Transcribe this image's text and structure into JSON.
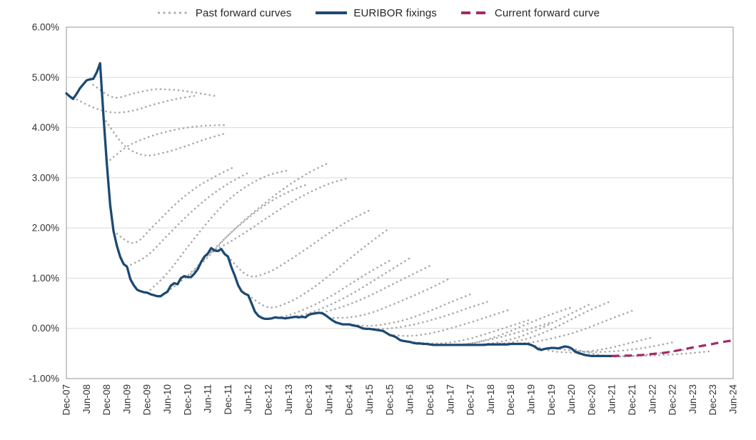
{
  "chart_data": {
    "type": "line",
    "title": "",
    "description": "EURIBOR fixings history with past forward curves (dotted) and current forward curve (dashed)",
    "grid": "horizontal",
    "legend": {
      "position": "top",
      "items": [
        {
          "label": "Past forward curves",
          "style": "dotted",
          "color": "#a8a8a8"
        },
        {
          "label": "EURIBOR fixings",
          "style": "solid",
          "color": "#1b4a73"
        },
        {
          "label": "Current forward curve",
          "style": "dashed",
          "color": "#a42a68"
        }
      ]
    },
    "y_axis": {
      "min": -1.0,
      "max": 6.0,
      "tick_values": [
        6,
        5,
        4,
        3,
        2,
        1,
        0,
        -1
      ],
      "tick_labels": [
        "6.00%",
        "5.00%",
        "4.00%",
        "3.00%",
        "2.00%",
        "1.00%",
        "0.00%",
        "-1.00%"
      ]
    },
    "x_axis": {
      "unit": "months_since_Dec-07",
      "min_month": 0,
      "max_month": 198,
      "tick_step_months": 6,
      "tick_labels": [
        "Dec-07",
        "Jun-08",
        "Dec-08",
        "Jun-09",
        "Dec-09",
        "Jun-10",
        "Dec-10",
        "Jun-11",
        "Dec-11",
        "Jun-12",
        "Dec-12",
        "Jun-13",
        "Dec-13",
        "Jun-14",
        "Dec-14",
        "Jun-15",
        "Dec-15",
        "Jun-16",
        "Dec-16",
        "Jun-17",
        "Dec-17",
        "Jun-18",
        "Dec-18",
        "Jun-19",
        "Dec-19",
        "Jun-20",
        "Dec-20",
        "Jun-21",
        "Dec-21",
        "Jun-22",
        "Dec-22",
        "Jun-23",
        "Dec-23",
        "Jun-24"
      ],
      "label_rotation_deg": -90
    },
    "series": {
      "euribor_fixings": {
        "name": "EURIBOR fixings",
        "color": "#1b4a73",
        "style": "solid",
        "start_month": 0,
        "step_months": 1,
        "values_pct": [
          4.68,
          4.62,
          4.57,
          4.67,
          4.78,
          4.86,
          4.94,
          4.96,
          4.97,
          5.1,
          5.28,
          4.24,
          3.29,
          2.46,
          1.94,
          1.64,
          1.42,
          1.28,
          1.23,
          0.98,
          0.86,
          0.77,
          0.74,
          0.72,
          0.71,
          0.68,
          0.66,
          0.64,
          0.64,
          0.69,
          0.73,
          0.85,
          0.9,
          0.88,
          1.0,
          1.04,
          1.02,
          1.02,
          1.09,
          1.18,
          1.32,
          1.43,
          1.49,
          1.6,
          1.55,
          1.54,
          1.58,
          1.48,
          1.43,
          1.22,
          1.05,
          0.86,
          0.74,
          0.69,
          0.66,
          0.5,
          0.33,
          0.25,
          0.21,
          0.19,
          0.19,
          0.2,
          0.22,
          0.21,
          0.21,
          0.2,
          0.21,
          0.22,
          0.23,
          0.22,
          0.23,
          0.22,
          0.27,
          0.29,
          0.3,
          0.31,
          0.3,
          0.26,
          0.21,
          0.16,
          0.12,
          0.1,
          0.08,
          0.08,
          0.08,
          0.06,
          0.05,
          0.03,
          0.0,
          -0.01,
          -0.01,
          -0.02,
          -0.03,
          -0.04,
          -0.05,
          -0.09,
          -0.13,
          -0.15,
          -0.18,
          -0.23,
          -0.25,
          -0.26,
          -0.27,
          -0.29,
          -0.3,
          -0.3,
          -0.31,
          -0.31,
          -0.32,
          -0.33,
          -0.33,
          -0.33,
          -0.33,
          -0.33,
          -0.33,
          -0.33,
          -0.33,
          -0.33,
          -0.33,
          -0.33,
          -0.33,
          -0.33,
          -0.33,
          -0.33,
          -0.33,
          -0.32,
          -0.32,
          -0.32,
          -0.32,
          -0.32,
          -0.32,
          -0.32,
          -0.31,
          -0.31,
          -0.31,
          -0.31,
          -0.31,
          -0.31,
          -0.33,
          -0.36,
          -0.41,
          -0.43,
          -0.41,
          -0.4,
          -0.39,
          -0.39,
          -0.4,
          -0.38,
          -0.36,
          -0.37,
          -0.4,
          -0.46,
          -0.49,
          -0.51,
          -0.53,
          -0.54,
          -0.55,
          -0.55,
          -0.55,
          -0.55,
          -0.55,
          -0.55,
          -0.55
        ]
      },
      "current_forward_curve": {
        "name": "Current forward curve",
        "color": "#a42a68",
        "style": "dashed",
        "start_month": 162,
        "step_months": 3,
        "values_pct": [
          -0.55,
          -0.545,
          -0.54,
          -0.53,
          -0.51,
          -0.49,
          -0.46,
          -0.42,
          -0.38,
          -0.345,
          -0.31,
          -0.27,
          -0.24
        ]
      },
      "past_forward_curves": {
        "name": "Past forward curves",
        "color": "#a8a8a8",
        "style": "dotted",
        "step_months": 6,
        "curves": [
          {
            "start_month": 2,
            "values_pct": [
              4.6,
              4.4,
              4.3,
              4.34,
              4.46,
              4.56,
              4.63
            ]
          },
          {
            "start_month": 8,
            "values_pct": [
              4.85,
              4.6,
              4.68,
              4.76,
              4.75,
              4.7,
              4.63
            ]
          },
          {
            "start_month": 11,
            "values_pct": [
              4.2,
              3.66,
              3.45,
              3.5,
              3.62,
              3.76,
              3.88
            ]
          },
          {
            "start_month": 12,
            "values_pct": [
              3.3,
              3.62,
              3.8,
              3.92,
              4.0,
              4.04,
              4.05
            ]
          },
          {
            "start_month": 14,
            "values_pct": [
              1.94,
              1.7,
              2.05,
              2.45,
              2.78,
              3.02,
              3.22
            ]
          },
          {
            "start_month": 18,
            "values_pct": [
              1.23,
              1.45,
              1.85,
              2.25,
              2.6,
              2.88,
              3.1
            ]
          },
          {
            "start_month": 24,
            "values_pct": [
              0.71,
              1.1,
              1.62,
              2.12,
              2.55,
              2.85,
              3.05,
              3.15
            ]
          },
          {
            "start_month": 30,
            "values_pct": [
              0.73,
              1.05,
              1.45,
              1.85,
              2.2,
              2.5,
              2.72,
              2.88
            ]
          },
          {
            "start_month": 36,
            "values_pct": [
              1.02,
              1.42,
              1.85,
              2.22,
              2.55,
              2.85,
              3.1,
              3.3
            ]
          },
          {
            "start_month": 42,
            "values_pct": [
              1.49,
              1.7,
              1.95,
              2.22,
              2.48,
              2.7,
              2.88,
              3.0
            ]
          },
          {
            "start_month": 48,
            "values_pct": [
              1.43,
              1.05,
              1.12,
              1.35,
              1.62,
              1.9,
              2.15,
              2.35
            ]
          },
          {
            "start_month": 54,
            "values_pct": [
              0.66,
              0.42,
              0.52,
              0.75,
              1.05,
              1.38,
              1.7,
              2.0
            ]
          },
          {
            "start_month": 60,
            "values_pct": [
              0.19,
              0.26,
              0.42,
              0.62,
              0.87,
              1.12,
              1.35
            ]
          },
          {
            "start_month": 66,
            "values_pct": [
              0.21,
              0.3,
              0.46,
              0.66,
              0.9,
              1.15,
              1.4
            ]
          },
          {
            "start_month": 72,
            "values_pct": [
              0.27,
              0.35,
              0.48,
              0.65,
              0.85,
              1.05,
              1.25
            ]
          },
          {
            "start_month": 78,
            "values_pct": [
              0.21,
              0.22,
              0.3,
              0.45,
              0.62,
              0.8,
              1.0
            ]
          },
          {
            "start_month": 84,
            "values_pct": [
              0.08,
              0.05,
              0.1,
              0.2,
              0.35,
              0.52,
              0.68
            ]
          },
          {
            "start_month": 90,
            "values_pct": [
              -0.01,
              0.0,
              0.06,
              0.16,
              0.28,
              0.42,
              0.55
            ]
          },
          {
            "start_month": 96,
            "values_pct": [
              -0.13,
              -0.15,
              -0.1,
              0.0,
              0.12,
              0.25,
              0.38
            ]
          },
          {
            "start_month": 102,
            "values_pct": [
              -0.27,
              -0.3,
              -0.28,
              -0.2,
              -0.08,
              0.05,
              0.18
            ]
          },
          {
            "start_month": 108,
            "values_pct": [
              -0.32,
              -0.33,
              -0.3,
              -0.22,
              -0.12,
              0.0,
              0.12
            ]
          },
          {
            "start_month": 114,
            "values_pct": [
              -0.33,
              -0.3,
              -0.2,
              -0.05,
              0.12,
              0.28,
              0.42
            ]
          },
          {
            "start_month": 120,
            "values_pct": [
              -0.33,
              -0.3,
              -0.22,
              -0.08,
              0.1,
              0.3,
              0.5
            ]
          },
          {
            "start_month": 126,
            "values_pct": [
              -0.32,
              -0.28,
              -0.18,
              -0.02,
              0.18,
              0.38,
              0.55
            ]
          },
          {
            "start_month": 132,
            "values_pct": [
              -0.31,
              -0.28,
              -0.2,
              -0.1,
              0.04,
              0.2,
              0.35
            ]
          },
          {
            "start_month": 138,
            "values_pct": [
              -0.33,
              -0.45,
              -0.48,
              -0.45,
              -0.38,
              -0.28,
              -0.18
            ]
          },
          {
            "start_month": 144,
            "values_pct": [
              -0.39,
              -0.44,
              -0.47,
              -0.46,
              -0.42,
              -0.36,
              -0.28
            ]
          },
          {
            "start_month": 150,
            "values_pct": [
              -0.4,
              -0.5,
              -0.56,
              -0.55,
              -0.51,
              -0.46,
              -0.4
            ]
          },
          {
            "start_month": 156,
            "values_pct": [
              -0.55,
              -0.56,
              -0.55,
              -0.54,
              -0.52,
              -0.49,
              -0.45
            ]
          }
        ]
      }
    }
  }
}
